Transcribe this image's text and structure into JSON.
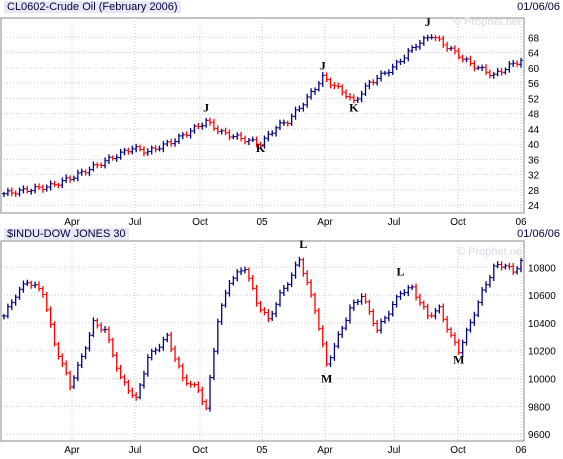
{
  "chart_data": [
    {
      "type": "bar",
      "title": "CL0602-Crude Oil (February 2006)",
      "date": "01/06/06",
      "watermark": "© Prophet.net",
      "x_labels": [
        "Apr",
        "Jul",
        "Oct",
        "05",
        "Apr",
        "Jul",
        "Oct",
        "06"
      ],
      "y_ticks": [
        24,
        28,
        32,
        36,
        40,
        44,
        48,
        52,
        56,
        60,
        64,
        68
      ],
      "ylim": [
        23,
        72
      ],
      "grid": true,
      "annotations": [
        {
          "label": "J",
          "week": 52,
          "value": 48.5
        },
        {
          "label": "K",
          "week": 66,
          "value": 38.0
        },
        {
          "label": "J",
          "week": 82,
          "value": 59.5
        },
        {
          "label": "K",
          "week": 90,
          "value": 48.5
        },
        {
          "label": "J",
          "week": 109,
          "value": 71.0
        }
      ],
      "anchors": [
        [
          0,
          27.0
        ],
        [
          12,
          29.0
        ],
        [
          18,
          31.5
        ],
        [
          25,
          35.0
        ],
        [
          33,
          39.0
        ],
        [
          37,
          38.0
        ],
        [
          44,
          41.0
        ],
        [
          52,
          46.0
        ],
        [
          56,
          43.0
        ],
        [
          66,
          40.0
        ],
        [
          70,
          44.5
        ],
        [
          73,
          46.0
        ],
        [
          78,
          52.0
        ],
        [
          82,
          57.5
        ],
        [
          88,
          53.0
        ],
        [
          90,
          51.0
        ],
        [
          94,
          56.0
        ],
        [
          100,
          60.0
        ],
        [
          106,
          66.0
        ],
        [
          110,
          68.5
        ],
        [
          116,
          64.0
        ],
        [
          120,
          61.0
        ],
        [
          126,
          58.0
        ],
        [
          130,
          60.5
        ],
        [
          133,
          62.0
        ]
      ]
    },
    {
      "type": "bar",
      "title": "$INDU-DOW JONES 30",
      "date": "01/06/06",
      "watermark": "© Prophet.net",
      "x_labels": [
        "Apr",
        "Jul",
        "Oct",
        "05",
        "Apr",
        "Jul",
        "Oct",
        "06"
      ],
      "y_ticks": [
        9600,
        9800,
        10000,
        10200,
        10400,
        10600,
        10800
      ],
      "ylim": [
        9580,
        10960
      ],
      "grid": true,
      "annotations": [
        {
          "label": "L",
          "week": 77,
          "value": 10940
        },
        {
          "label": "M",
          "week": 83,
          "value": 9970
        },
        {
          "label": "L",
          "week": 102,
          "value": 10740
        },
        {
          "label": "M",
          "week": 117,
          "value": 10110
        }
      ],
      "anchors": [
        [
          0,
          10450
        ],
        [
          3,
          10600
        ],
        [
          6,
          10700
        ],
        [
          10,
          10620
        ],
        [
          13,
          10250
        ],
        [
          17,
          9950
        ],
        [
          20,
          10150
        ],
        [
          23,
          10400
        ],
        [
          26,
          10350
        ],
        [
          30,
          10000
        ],
        [
          34,
          9850
        ],
        [
          37,
          10150
        ],
        [
          42,
          10300
        ],
        [
          46,
          10000
        ],
        [
          50,
          9920
        ],
        [
          52,
          9780
        ],
        [
          55,
          10420
        ],
        [
          58,
          10700
        ],
        [
          62,
          10800
        ],
        [
          65,
          10550
        ],
        [
          68,
          10420
        ],
        [
          71,
          10600
        ],
        [
          74,
          10740
        ],
        [
          76,
          10860
        ],
        [
          80,
          10500
        ],
        [
          83,
          10100
        ],
        [
          86,
          10300
        ],
        [
          89,
          10500
        ],
        [
          92,
          10600
        ],
        [
          96,
          10350
        ],
        [
          99,
          10480
        ],
        [
          102,
          10620
        ],
        [
          105,
          10650
        ],
        [
          109,
          10450
        ],
        [
          112,
          10500
        ],
        [
          115,
          10300
        ],
        [
          117,
          10200
        ],
        [
          120,
          10400
        ],
        [
          123,
          10620
        ],
        [
          126,
          10800
        ],
        [
          129,
          10820
        ],
        [
          131,
          10760
        ],
        [
          133,
          10850
        ]
      ]
    }
  ]
}
